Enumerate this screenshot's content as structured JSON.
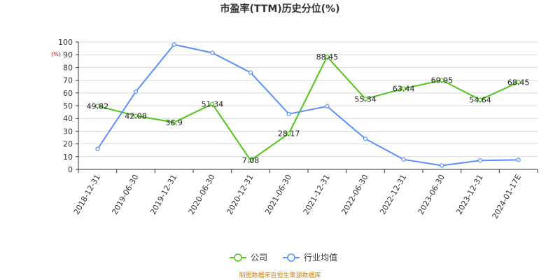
{
  "chart_data": {
    "type": "line",
    "title": "市盈率(TTM)历史分位(%)",
    "unit": "(%)",
    "categories": [
      "2018-12-31",
      "2019-06-30",
      "2019-12-31",
      "2020-06-30",
      "2020-12-31",
      "2021-06-30",
      "2021-12-31",
      "2022-06-30",
      "2022-12-31",
      "2023-06-30",
      "2023-12-31",
      "2024-01-17E"
    ],
    "ylim": [
      0,
      100
    ],
    "yticks": [
      "0",
      "10",
      "20",
      "30",
      "40",
      "50",
      "60",
      "70",
      "80",
      "90",
      "100"
    ],
    "grid": true,
    "legend_position": "bottom",
    "series": [
      {
        "name": "公司",
        "color": "#52c41a",
        "values": [
          49.82,
          42.08,
          36.9,
          51.34,
          7.08,
          28.17,
          88.45,
          55.34,
          63.44,
          69.95,
          54.64,
          68.45
        ],
        "labels": [
          "49.82",
          "42.08",
          "36.9",
          "51.34",
          "7.08",
          "28.17",
          "88.45",
          "55.34",
          "63.44",
          "69.95",
          "54.64",
          "68.45"
        ]
      },
      {
        "name": "行业均值",
        "color": "#5b8ff9",
        "values": [
          16,
          61,
          98,
          91.5,
          76,
          43.5,
          49.5,
          24,
          7.8,
          3,
          7,
          7.5
        ]
      }
    ]
  },
  "footer": "制图数据来自恒生聚源数据库"
}
